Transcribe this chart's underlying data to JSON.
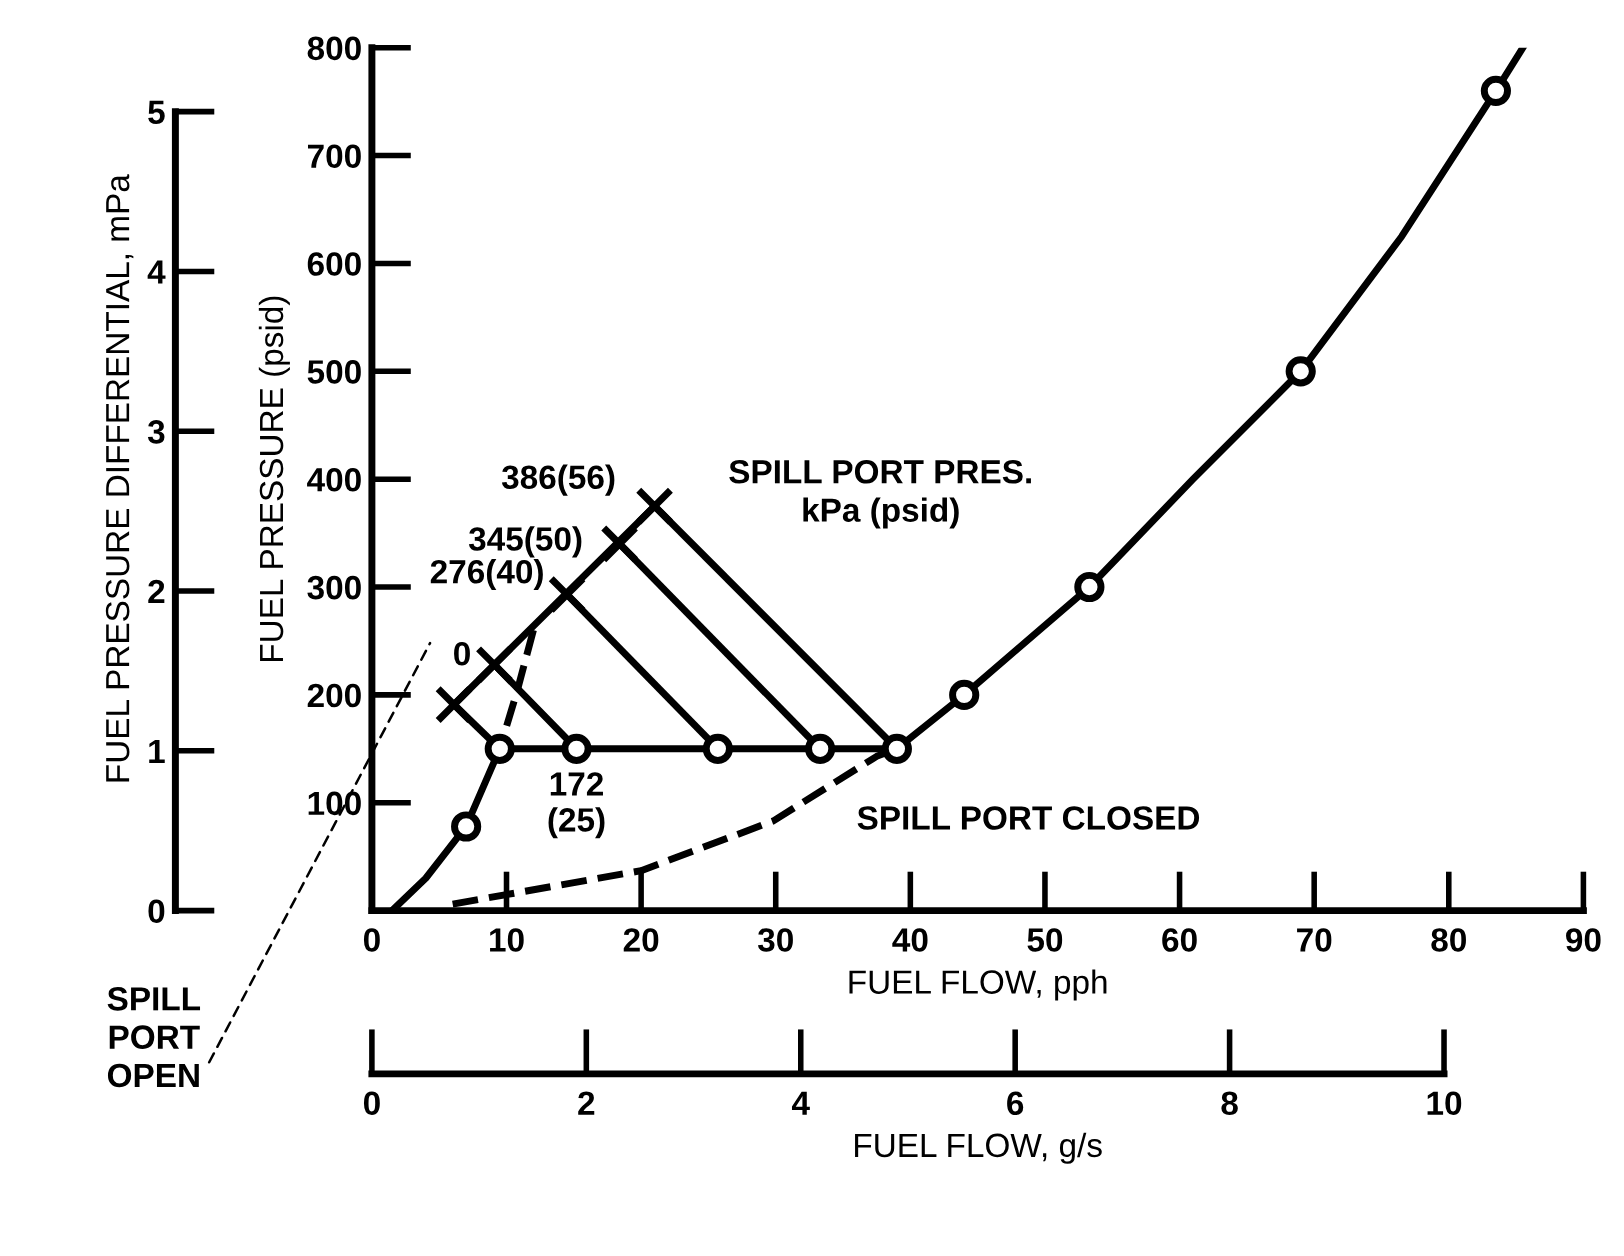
{
  "chart_data": {
    "type": "line",
    "xlabel": "FUEL FLOW, pph",
    "ylabel": "FUEL PRESSURE (psid)",
    "y2label": "FUEL PRESSURE DIFFERENTIAL, mPa",
    "x2label": "FUEL FLOW, g/s",
    "xlim": [
      0,
      90
    ],
    "xticks": [
      0,
      10,
      20,
      30,
      40,
      50,
      60,
      70,
      80,
      90
    ],
    "ylim": [
      0,
      800
    ],
    "yticks": [
      100,
      200,
      300,
      400,
      500,
      600,
      700,
      800
    ],
    "y2lim": [
      0,
      5.4
    ],
    "y2ticks": [
      0,
      1,
      2,
      3,
      4,
      5
    ],
    "x2lim": [
      0,
      11.3
    ],
    "x2ticks": [
      0,
      2,
      4,
      6,
      8,
      10
    ],
    "grid": false,
    "legend": false,
    "series": [
      {
        "color": "#000000",
        "marker": "none",
        "line_style": "solid",
        "x": [
          1.5,
          4,
          7,
          9.5,
          15.2,
          25.7,
          33.3,
          39,
          44,
          53.3,
          61,
          69,
          76.5,
          83.5,
          85.5
        ],
        "values": [
          0,
          30,
          78,
          150,
          150,
          150,
          150,
          150,
          200,
          300,
          400,
          500,
          625,
          760,
          800
        ]
      },
      {
        "type": "line",
        "color": "#000000",
        "marker": "none",
        "line_style": "solid",
        "x": [
          6.1,
          21
        ],
        "values": [
          191,
          375
        ]
      },
      {
        "type": "line",
        "color": "#000000",
        "marker": "none",
        "line_style": "solid",
        "x": [
          6.1,
          9.5
        ],
        "values": [
          191,
          150
        ]
      },
      {
        "type": "line",
        "color": "#000000",
        "marker": "none",
        "line_style": "solid",
        "x": [
          9.1,
          15.2
        ],
        "values": [
          228,
          150
        ]
      },
      {
        "type": "line",
        "color": "#000000",
        "marker": "none",
        "line_style": "solid",
        "x": [
          14.5,
          25.7
        ],
        "values": [
          293,
          150
        ]
      },
      {
        "type": "line",
        "color": "#000000",
        "marker": "none",
        "line_style": "solid",
        "x": [
          18.4,
          33.3
        ],
        "values": [
          340,
          150
        ]
      },
      {
        "type": "line",
        "color": "#000000",
        "marker": "none",
        "line_style": "solid",
        "x": [
          21,
          39
        ],
        "values": [
          375,
          150
        ]
      },
      {
        "type": "line",
        "color": "#000000",
        "marker": "none",
        "line_style": "dashed",
        "x": [
          6,
          20,
          29.8,
          37.5,
          39
        ],
        "values": [
          6,
          37,
          83,
          143,
          150
        ]
      },
      {
        "type": "line",
        "color": "#000000",
        "marker": "none",
        "line_style": "dashed",
        "x": [
          12,
          10.8,
          9.5
        ],
        "values": [
          260,
          204,
          150
        ]
      },
      {
        "type": "scatter",
        "color": "#000000",
        "marker": "circle",
        "x": [
          7,
          9.5,
          15.2,
          25.7,
          33.3,
          39,
          44,
          53.3,
          69,
          83.5
        ],
        "values": [
          78,
          150,
          150,
          150,
          150,
          150,
          200,
          300,
          500,
          760
        ]
      },
      {
        "type": "scatter",
        "color": "#000000",
        "marker": "cross",
        "x": [
          6.1,
          9.1,
          14.5,
          18.4,
          21
        ],
        "values": [
          191,
          228,
          293,
          340,
          375
        ]
      }
    ],
    "annotations": [
      {
        "text": "386(56)",
        "x": 21,
        "y": 375
      },
      {
        "text": "345(50)",
        "x": 18.4,
        "y": 340
      },
      {
        "text": "276(40)",
        "x": 14.5,
        "y": 293
      },
      {
        "text": "0",
        "x": 6.1,
        "y": 191
      },
      {
        "text": "172\n(25)",
        "x": 15.2,
        "y": 150
      },
      "SPILL\nPORT\nOPEN",
      "SPILL PORT PRES.\nkPa (psid)",
      "SPILL PORT CLOSED"
    ]
  }
}
